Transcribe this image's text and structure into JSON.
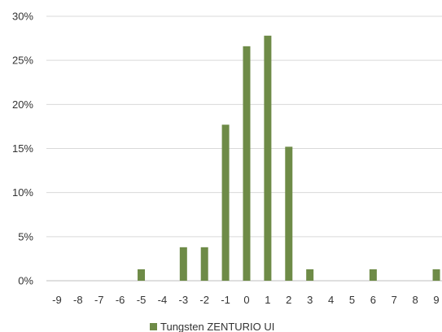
{
  "chart_data": {
    "type": "bar",
    "categories": [
      "-9",
      "-8",
      "-7",
      "-6",
      "-5",
      "-4",
      "-3",
      "-2",
      "-1",
      "0",
      "1",
      "2",
      "3",
      "4",
      "5",
      "6",
      "7",
      "8",
      "9"
    ],
    "series": [
      {
        "name": "Tungsten ZENTURIO UI",
        "color": "#6e8b47",
        "values": [
          0,
          0,
          0,
          0,
          1.3,
          0,
          3.8,
          3.8,
          17.7,
          26.6,
          27.8,
          15.2,
          1.3,
          0,
          0,
          1.3,
          0,
          0,
          1.3
        ]
      }
    ],
    "ylim": [
      0,
      30
    ],
    "yticks": [
      0,
      5,
      10,
      15,
      20,
      25,
      30
    ],
    "ytick_labels": [
      "0%",
      "5%",
      "10%",
      "15%",
      "20%",
      "25%",
      "30%"
    ],
    "grid": true,
    "legend_position": "bottom",
    "title": "",
    "xlabel": "",
    "ylabel": ""
  }
}
